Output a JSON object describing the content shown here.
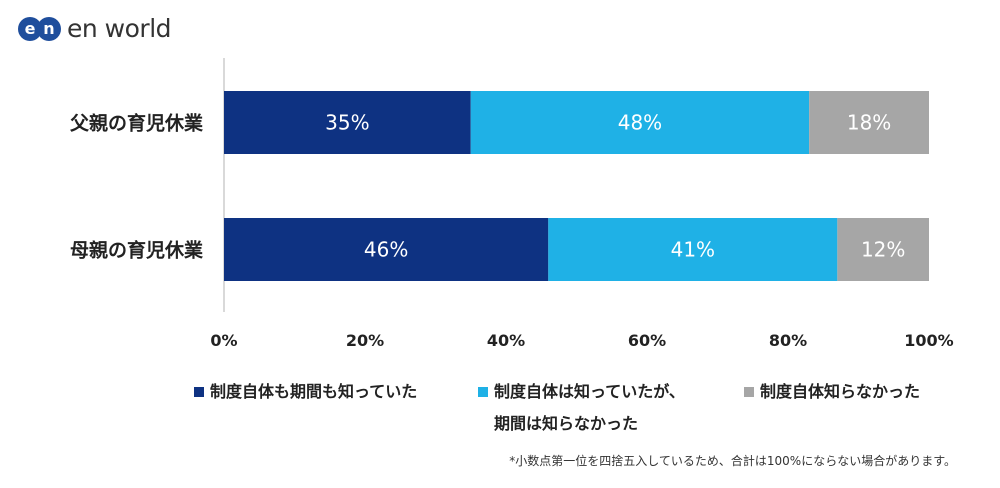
{
  "logo": {
    "mark": [
      "e",
      "n"
    ],
    "text": "en world"
  },
  "chart_data": {
    "type": "bar",
    "orientation": "horizontal-stacked",
    "categories": [
      "父親の育児休業",
      "母親の育児休業"
    ],
    "series": [
      {
        "name": "制度自体も期間も知っていた",
        "values": [
          35,
          46
        ],
        "labels": [
          "35%",
          "46%"
        ],
        "color": "#0e3282"
      },
      {
        "name": "制度自体は知っていたが、\n期間は知らなかった",
        "values": [
          48,
          41
        ],
        "labels": [
          "48%",
          "41%"
        ],
        "color": "#1fb1e6"
      },
      {
        "name": "制度自体知らなかった",
        "values": [
          18,
          12
        ],
        "labels": [
          "18%",
          "12%"
        ],
        "color": "#a6a6a6"
      }
    ],
    "xlim": [
      0,
      100
    ],
    "xticks": [
      "0%",
      "20%",
      "40%",
      "60%",
      "80%",
      "100%"
    ],
    "legend_position": "bottom"
  },
  "footnote": "*小数点第一位を四捨五入しているため、合計は100%にならない場合があります。"
}
